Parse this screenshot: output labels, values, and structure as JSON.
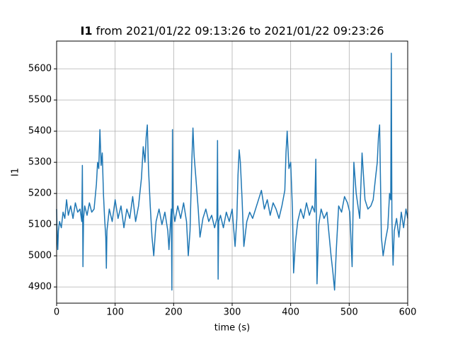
{
  "chart_data": {
    "type": "line",
    "title": {
      "variable": "I1",
      "text": "from 2021/01/22 09:13:26 to 2021/01/22 09:23:26"
    },
    "xlabel": "time (s)",
    "ylabel": "I1",
    "x": [
      0,
      1,
      2,
      3,
      5,
      8,
      11,
      14,
      17,
      20,
      24,
      28,
      32,
      36,
      40,
      43,
      44,
      45,
      46,
      48,
      52,
      56,
      60,
      64,
      68,
      70,
      72,
      74,
      76,
      78,
      80,
      82,
      84,
      85,
      86,
      90,
      95,
      100,
      105,
      110,
      115,
      120,
      125,
      130,
      135,
      140,
      145,
      148,
      151,
      153,
      155,
      157,
      160,
      163,
      166,
      170,
      175,
      180,
      185,
      190,
      192,
      195,
      196,
      197,
      198,
      199,
      202,
      207,
      212,
      217,
      222,
      225,
      228,
      231,
      233,
      235,
      238,
      242,
      245,
      250,
      255,
      260,
      265,
      270,
      274,
      275,
      276,
      277,
      280,
      285,
      290,
      295,
      300,
      305,
      308,
      310,
      312,
      314,
      317,
      320,
      325,
      330,
      335,
      340,
      345,
      350,
      355,
      360,
      365,
      370,
      375,
      380,
      385,
      390,
      392,
      394,
      397,
      400,
      403,
      405,
      408,
      412,
      417,
      422,
      427,
      432,
      437,
      441,
      443,
      445,
      448,
      452,
      457,
      462,
      466,
      469,
      472,
      475,
      478,
      482,
      487,
      492,
      497,
      501,
      505,
      508,
      512,
      515,
      518,
      522,
      527,
      532,
      537,
      541,
      545,
      548,
      550,
      552,
      555,
      558,
      562,
      566,
      569,
      571,
      572,
      573,
      574,
      575,
      577,
      581,
      585,
      589,
      593,
      597,
      600
    ],
    "series": [
      {
        "name": "I1",
        "color": "#1f77b4",
        "values": [
          5150,
          5060,
          5020,
          5080,
          5110,
          5090,
          5140,
          5120,
          5180,
          5130,
          5160,
          5120,
          5170,
          5140,
          5150,
          5110,
          5290,
          4965,
          5120,
          5160,
          5130,
          5170,
          5140,
          5150,
          5230,
          5300,
          5280,
          5405,
          5290,
          5330,
          5200,
          5120,
          5060,
          4960,
          5080,
          5150,
          5110,
          5180,
          5120,
          5160,
          5090,
          5150,
          5120,
          5190,
          5110,
          5160,
          5250,
          5350,
          5300,
          5380,
          5420,
          5280,
          5160,
          5060,
          5000,
          5110,
          5150,
          5100,
          5140,
          5080,
          5020,
          5120,
          5150,
          4890,
          5405,
          5150,
          5110,
          5160,
          5120,
          5170,
          5110,
          5000,
          5080,
          5300,
          5410,
          5320,
          5250,
          5150,
          5060,
          5120,
          5150,
          5110,
          5130,
          5090,
          5120,
          5370,
          4925,
          5110,
          5130,
          5090,
          5140,
          5110,
          5150,
          5030,
          5120,
          5260,
          5340,
          5300,
          5180,
          5030,
          5110,
          5140,
          5120,
          5150,
          5180,
          5210,
          5150,
          5180,
          5130,
          5170,
          5150,
          5120,
          5160,
          5210,
          5330,
          5400,
          5280,
          5300,
          5150,
          4945,
          5040,
          5110,
          5150,
          5120,
          5170,
          5130,
          5160,
          5140,
          5310,
          4910,
          5100,
          5150,
          5120,
          5140,
          5060,
          5000,
          4950,
          4890,
          5020,
          5160,
          5140,
          5190,
          5170,
          5140,
          4965,
          5300,
          5200,
          5160,
          5120,
          5330,
          5180,
          5150,
          5160,
          5180,
          5250,
          5300,
          5380,
          5420,
          5060,
          5000,
          5050,
          5090,
          5200,
          5180,
          5650,
          5120,
          5040,
          4970,
          5080,
          5120,
          5060,
          5140,
          5090,
          5150,
          5120
        ]
      }
    ],
    "xlim": [
      0,
      600
    ],
    "xticks": [
      0,
      100,
      200,
      300,
      400,
      500,
      600
    ],
    "ylim": [
      4848,
      5689
    ],
    "yticks": [
      4900,
      5000,
      5100,
      5200,
      5300,
      5400,
      5500,
      5600
    ],
    "grid": true
  }
}
